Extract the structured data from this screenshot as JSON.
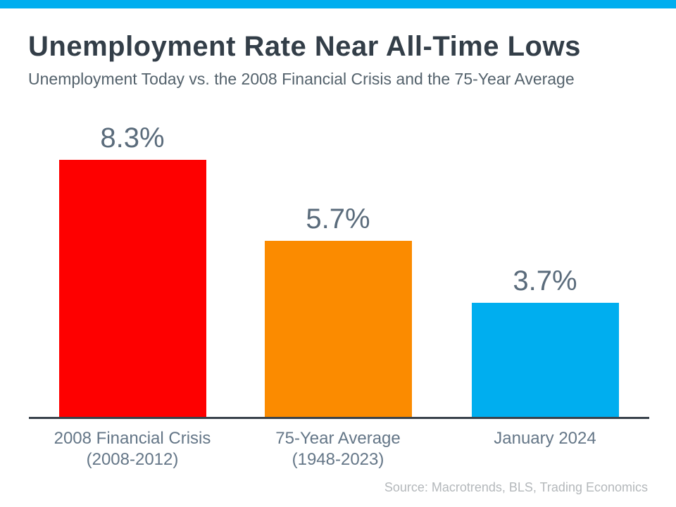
{
  "page": {
    "accent_color": "#00aeef"
  },
  "header": {
    "title": "Unemployment Rate Near All-Time Lows",
    "subtitle": "Unemployment Today vs. the 2008 Financial Crisis and the 75-Year Average"
  },
  "chart_data": {
    "type": "bar",
    "title": "Unemployment Rate Near All-Time Lows",
    "subtitle": "Unemployment Today vs. the 2008 Financial Crisis and the 75-Year Average",
    "categories": [
      [
        "2008 Financial Crisis",
        "(2008-2012)"
      ],
      [
        "75-Year Average",
        "(1948-2023)"
      ],
      [
        "January 2024"
      ]
    ],
    "values": [
      8.3,
      5.7,
      3.7
    ],
    "value_labels": [
      "8.3%",
      "5.7%",
      "3.7%"
    ],
    "bar_colors": [
      "#fe0000",
      "#fb8b00",
      "#00aeef"
    ],
    "xlabel": "",
    "ylabel": "",
    "ylim": [
      0,
      8.3
    ],
    "grid": false,
    "legend": "none",
    "value_label_position": "above-bar",
    "baseline_axis_color": "#39424b"
  },
  "footer": {
    "source": "Source: Macrotrends, BLS, Trading Economics"
  }
}
